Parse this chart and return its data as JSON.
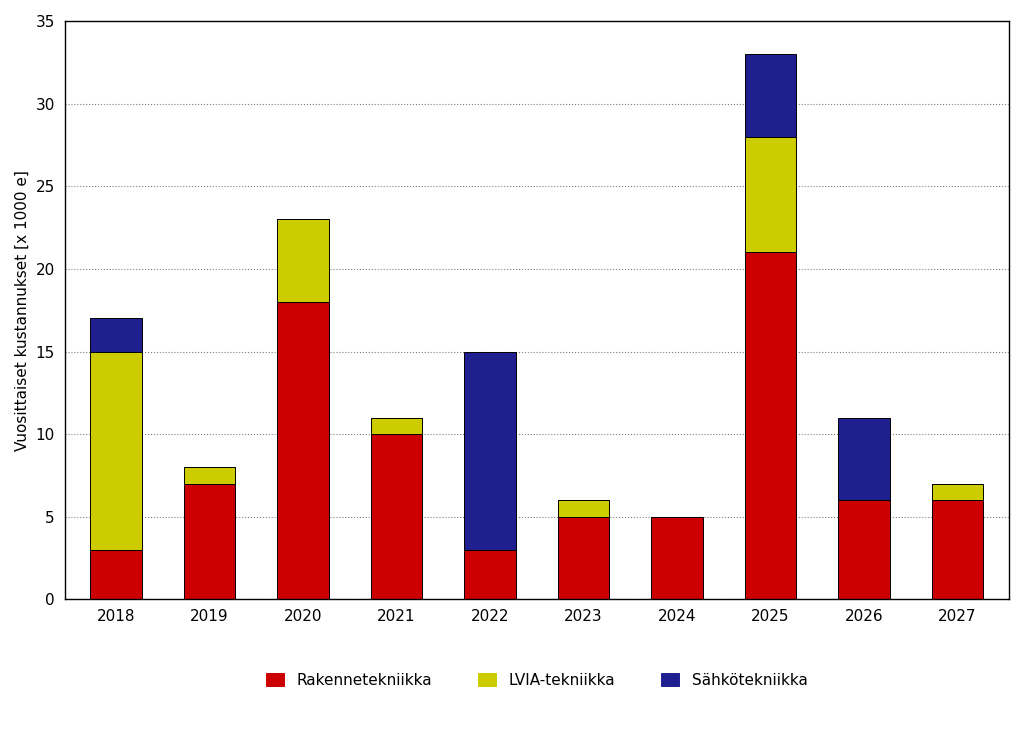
{
  "years": [
    "2018",
    "2019",
    "2020",
    "2021",
    "2022",
    "2023",
    "2024",
    "2025",
    "2026",
    "2027"
  ],
  "rakennetekniikka": [
    3,
    7,
    18,
    10,
    3,
    5,
    5,
    21,
    6,
    6
  ],
  "lvia_tekniikka": [
    12,
    1,
    5,
    1,
    0,
    1,
    0,
    7,
    0,
    1
  ],
  "sahkotekniikka": [
    2,
    0,
    0,
    0,
    12,
    0,
    0,
    5,
    5,
    0
  ],
  "color_rakennetekniikka": "#CC0000",
  "color_lvia": "#CCCC00",
  "color_sahko": "#1F1F8F",
  "ylabel": "Vuosittaiset kustannukset [x 1000 e]",
  "ylim": [
    0,
    35
  ],
  "yticks": [
    0,
    5,
    10,
    15,
    20,
    25,
    30,
    35
  ],
  "legend_rakennetekniikka": "Rakennetekniikka",
  "legend_lvia": "LVIA-tekniikka",
  "legend_sahko": "Sähkötekniikka",
  "plot_background_color": "#FFFFFF",
  "fig_background_color": "#FFFFFF",
  "bar_edge_color": "#000000",
  "bar_width": 0.55,
  "label_fontsize": 11,
  "tick_fontsize": 11,
  "legend_fontsize": 11,
  "grid_color": "#808080",
  "grid_linestyle": ":"
}
